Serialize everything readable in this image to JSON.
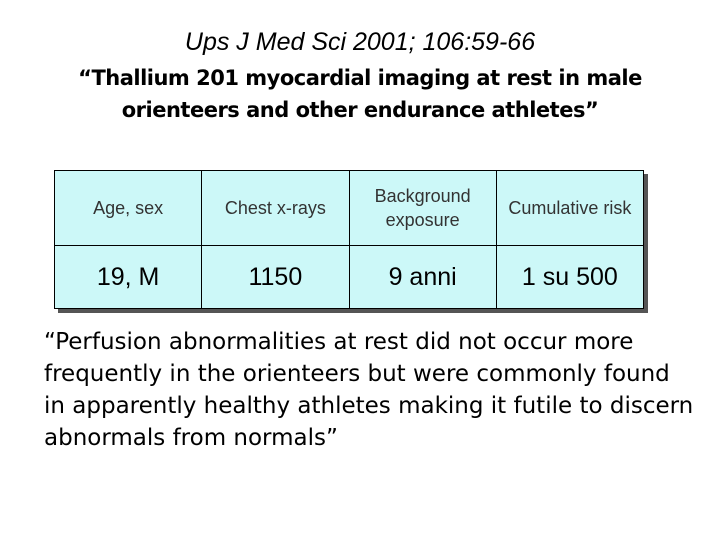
{
  "header": {
    "citation": "Ups J Med Sci 2001; 106:59-66",
    "title": "“Thallium 201 myocardial imaging at rest in male orienteers and other endurance athletes”"
  },
  "table": {
    "header": [
      "Age, sex",
      "Chest x-rays",
      "Background exposure",
      "Cumulative risk"
    ],
    "rows": [
      [
        "19, M",
        "1150",
        "9 anni",
        "1 su 500"
      ]
    ]
  },
  "quote": "“Perfusion abnormalities at rest did not occur more frequently in the orienteers but were commonly found in apparently healthy athletes making it futile to discern abnormals from normals”"
}
